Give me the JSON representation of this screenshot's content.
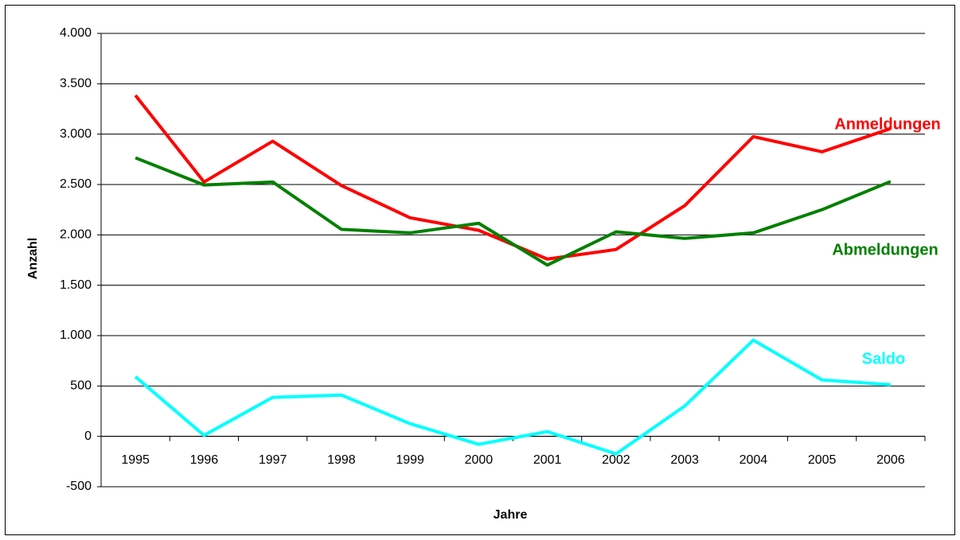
{
  "chart_data": {
    "type": "line",
    "x_label": "Jahre",
    "y_label": "Anzahl",
    "categories": [
      "1995",
      "1996",
      "1997",
      "1998",
      "1999",
      "2000",
      "2001",
      "2002",
      "2003",
      "2004",
      "2005",
      "2006"
    ],
    "series": [
      {
        "name": "Anmeldungen",
        "color": "#ff0000",
        "values": [
          3385,
          2525,
          2930,
          2490,
          2170,
          2045,
          1760,
          1855,
          2290,
          2975,
          2825,
          3055
        ]
      },
      {
        "name": "Abmeldungen",
        "color": "#008000",
        "values": [
          2765,
          2495,
          2525,
          2055,
          2020,
          2115,
          1700,
          2030,
          1965,
          2020,
          2250,
          2530
        ]
      },
      {
        "name": "Saldo",
        "color": "#00ffff",
        "values": [
          592,
          10,
          387,
          410,
          126,
          -79,
          47,
          -174,
          300,
          955,
          560,
          513
        ]
      }
    ],
    "ylim": [
      -500,
      4000
    ],
    "yticks": [
      -500,
      0,
      500,
      {
        "value": 1000,
        "label": "1.000"
      },
      {
        "value": 1500,
        "label": "1.500"
      },
      {
        "value": 2000,
        "label": "2.000"
      },
      {
        "value": 2500,
        "label": "2.500"
      },
      {
        "value": 3000,
        "label": "3.000"
      },
      {
        "value": 3500,
        "label": "3.500"
      },
      {
        "value": 4000,
        "label": "4.000"
      }
    ],
    "grid": true
  }
}
